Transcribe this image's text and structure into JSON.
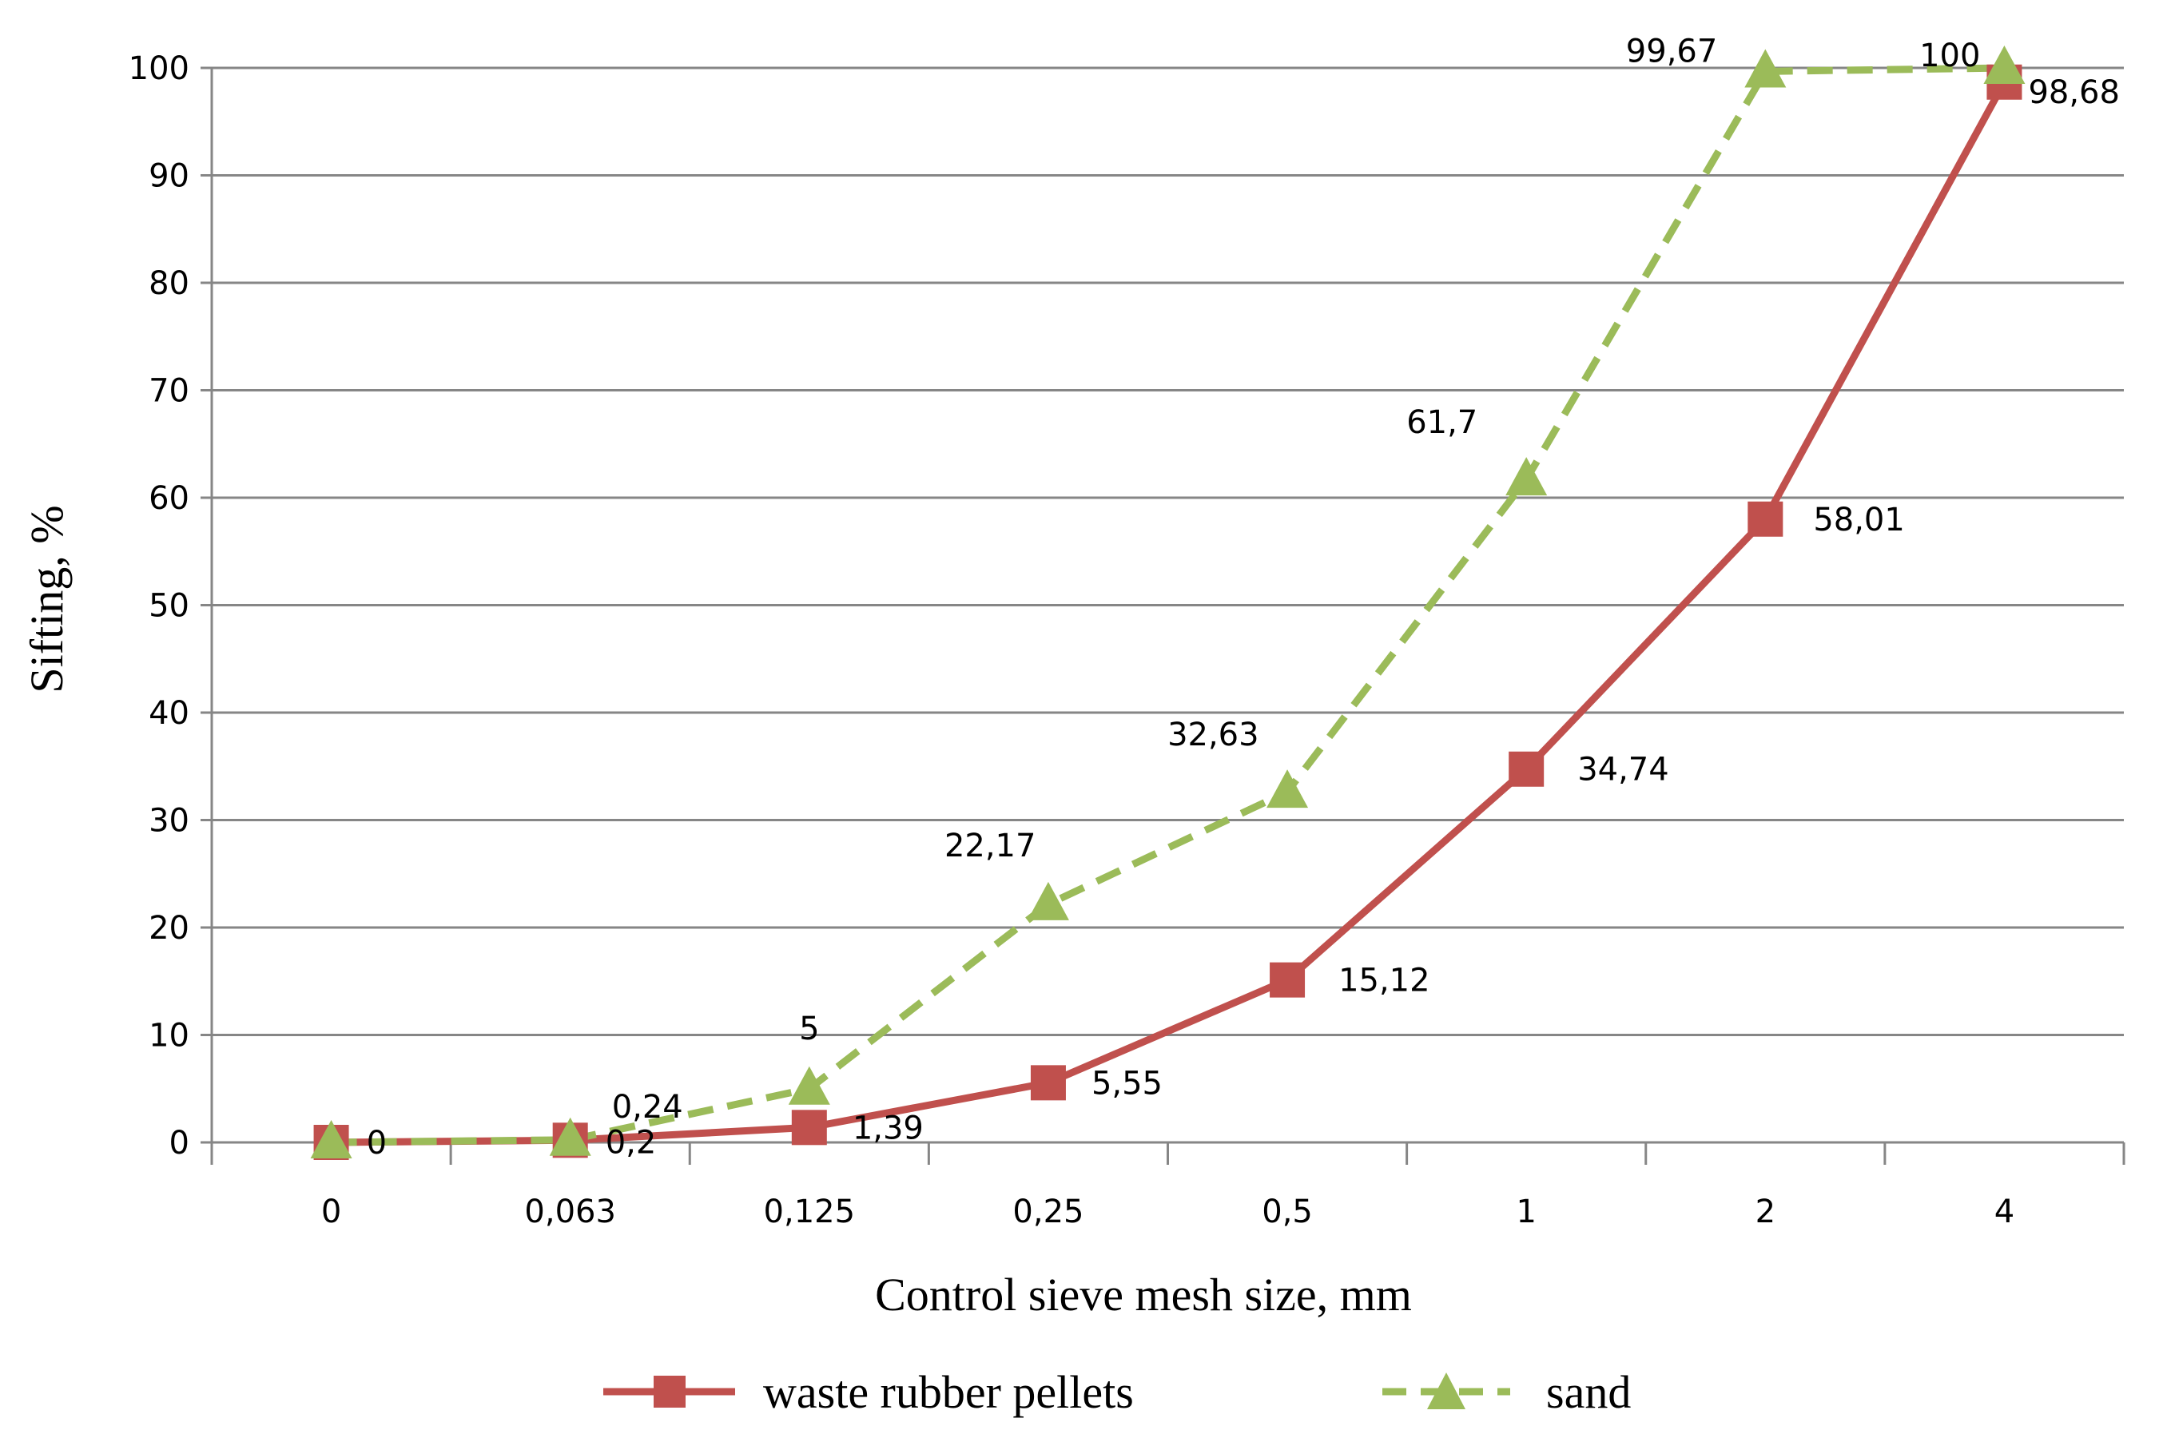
{
  "chart_data": {
    "type": "line",
    "categories": [
      "0",
      "0,063",
      "0,125",
      "0,25",
      "0,5",
      "1",
      "2",
      "4"
    ],
    "xlabel": "Control sieve mesh size, mm",
    "ylabel": "Sifting, %",
    "ylim": [
      0,
      100
    ],
    "yticks": [
      "0",
      "10",
      "20",
      "30",
      "40",
      "50",
      "60",
      "70",
      "80",
      "90",
      "100"
    ],
    "grid": "horizontal",
    "legend_position": "bottom",
    "series": [
      {
        "name": "waste rubber pellets",
        "values": [
          0,
          0.2,
          1.39,
          5.55,
          15.12,
          34.74,
          58.01,
          98.68
        ],
        "labels": [
          "0",
          "0,2",
          "1,39",
          "5,55",
          "15,12",
          "34,74",
          "58,01",
          "98,68"
        ],
        "color": "#C0504D",
        "line_style": "solid",
        "marker": "square"
      },
      {
        "name": "sand",
        "values": [
          0,
          0.24,
          5,
          22.17,
          32.63,
          61.7,
          99.67,
          100
        ],
        "labels": [
          "0",
          "0,24",
          "5",
          "22,17",
          "32,63",
          "61,7",
          "99,67",
          "100"
        ],
        "color": "#9BBB59",
        "line_style": "dashed",
        "marker": "triangle"
      }
    ]
  }
}
